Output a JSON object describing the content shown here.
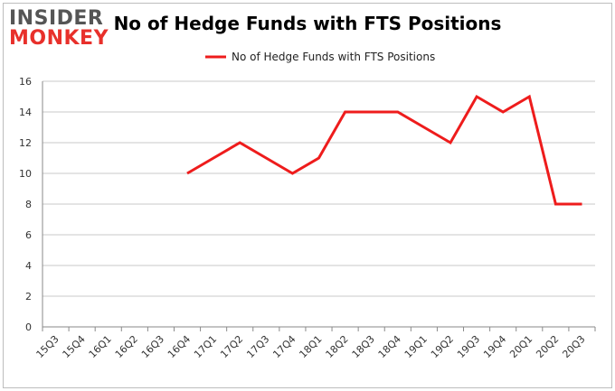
{
  "brand": {
    "line1": "INSIDER",
    "line2": "MONKEY"
  },
  "chart_data": {
    "type": "line",
    "title": "No of Hedge Funds with FTS Positions",
    "legend": "top-center",
    "grid": true,
    "ylim": [
      0,
      16
    ],
    "yticks": [
      0,
      2,
      4,
      6,
      8,
      10,
      12,
      14,
      16
    ],
    "categories": [
      "15Q3",
      "15Q4",
      "16Q1",
      "16Q2",
      "16Q3",
      "16Q4",
      "17Q1",
      "17Q2",
      "17Q3",
      "17Q4",
      "18Q1",
      "18Q2",
      "18Q3",
      "18Q4",
      "19Q1",
      "19Q2",
      "19Q3",
      "19Q4",
      "20Q1",
      "20Q2",
      "20Q3"
    ],
    "series": [
      {
        "name": "No of Hedge Funds with FTS Positions",
        "color": "#ee1c1c",
        "values": [
          null,
          null,
          null,
          null,
          null,
          10,
          11,
          12,
          11,
          10,
          11,
          14,
          14,
          14,
          13,
          12,
          15,
          14,
          15,
          8,
          8
        ]
      }
    ]
  }
}
